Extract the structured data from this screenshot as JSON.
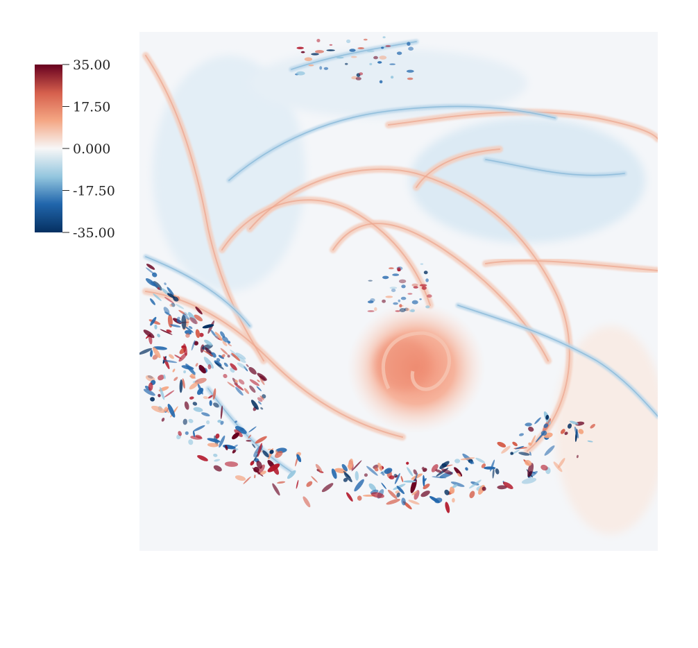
{
  "chart_data": {
    "type": "heatmap",
    "title": "",
    "xlabel": "",
    "ylabel": "",
    "colormap": "RdBu_r",
    "colors": {
      "max": "#67001f",
      "high": "#d6604d",
      "mid_high": "#f4a582",
      "zero": "#f7f7f7",
      "mid_low": "#92c5de",
      "low": "#2166ac",
      "min": "#053061"
    },
    "colorbar": {
      "range": [
        -35.0,
        35.0
      ],
      "ticks": [
        35.0,
        17.5,
        0.0,
        -17.5,
        -35.0
      ],
      "tick_labels": [
        "35.00",
        "17.50",
        "0.000",
        "-17.50",
        "-35.00"
      ],
      "placement": "top-left"
    },
    "field_features": {
      "central_vortex_peak": 14.0,
      "turbulent_band_extremes": [
        -35.0,
        35.0
      ],
      "background_level": 0.0
    }
  }
}
